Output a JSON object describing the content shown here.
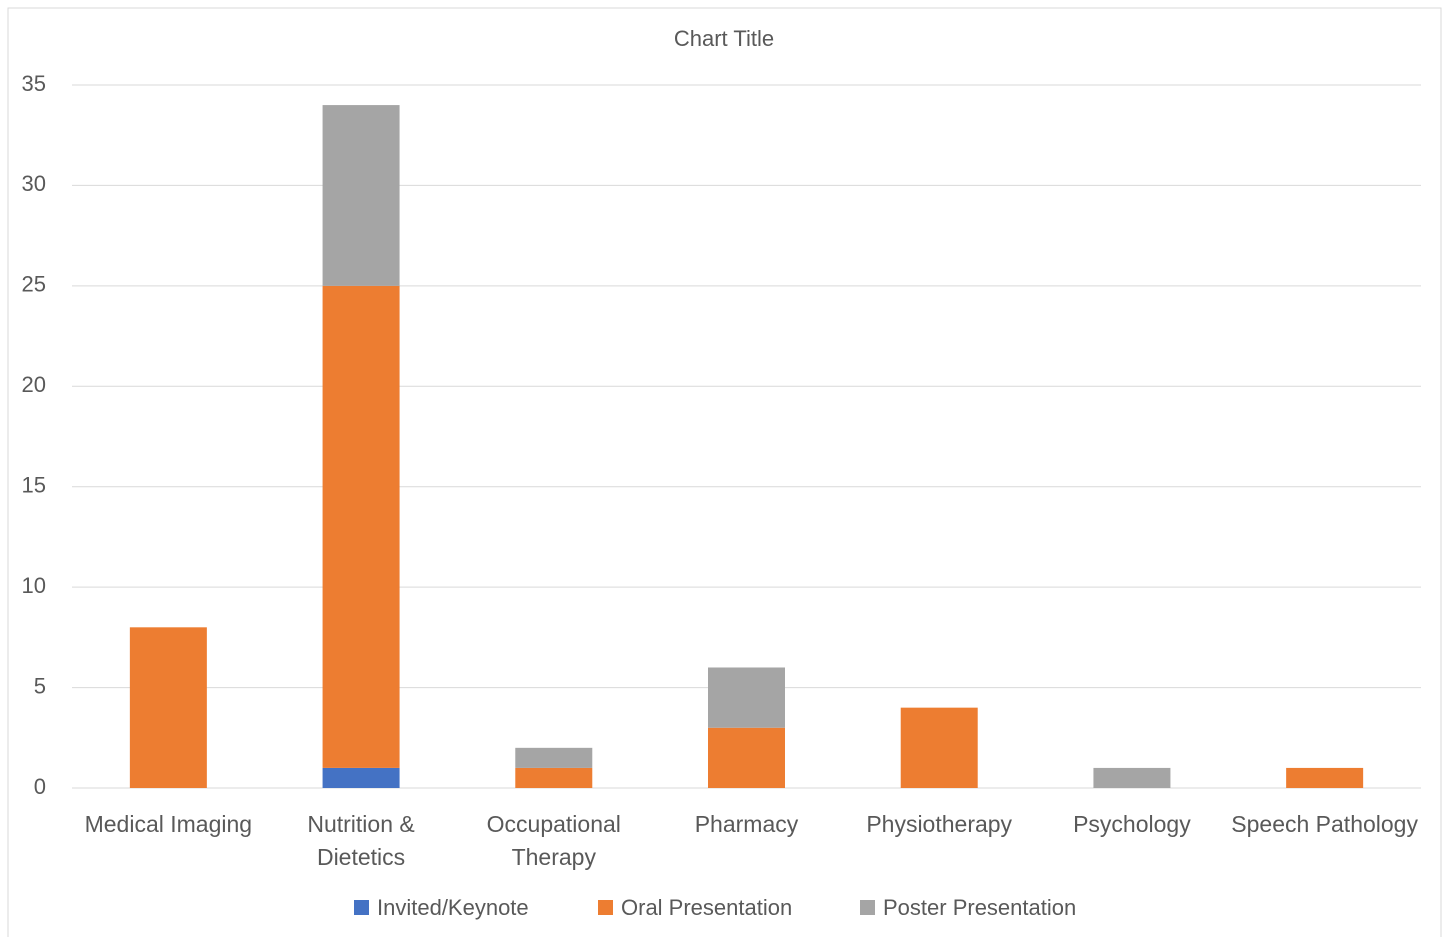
{
  "chart_data": {
    "type": "stacked_bar",
    "title": "Chart Title",
    "categories": [
      "Medical Imaging",
      "Nutrition & Dietetics",
      "Occupational Therapy",
      "Pharmacy",
      "Physiotherapy",
      "Psychology",
      "Speech Pathology"
    ],
    "series": [
      {
        "name": "Invited/Keynote",
        "color": "#4472c4",
        "values": [
          0,
          1,
          0,
          0,
          0,
          0,
          0
        ]
      },
      {
        "name": "Oral Presentation",
        "color": "#ed7d31",
        "values": [
          8,
          24,
          1,
          3,
          4,
          0,
          1
        ]
      },
      {
        "name": "Poster Presentation",
        "color": "#a5a5a5",
        "values": [
          0,
          9,
          1,
          3,
          0,
          1,
          0
        ]
      }
    ],
    "ylim": [
      0,
      35
    ],
    "yticks": [
      0,
      5,
      10,
      15,
      20,
      25,
      30,
      35
    ],
    "grid": true,
    "legend": "bottom"
  }
}
